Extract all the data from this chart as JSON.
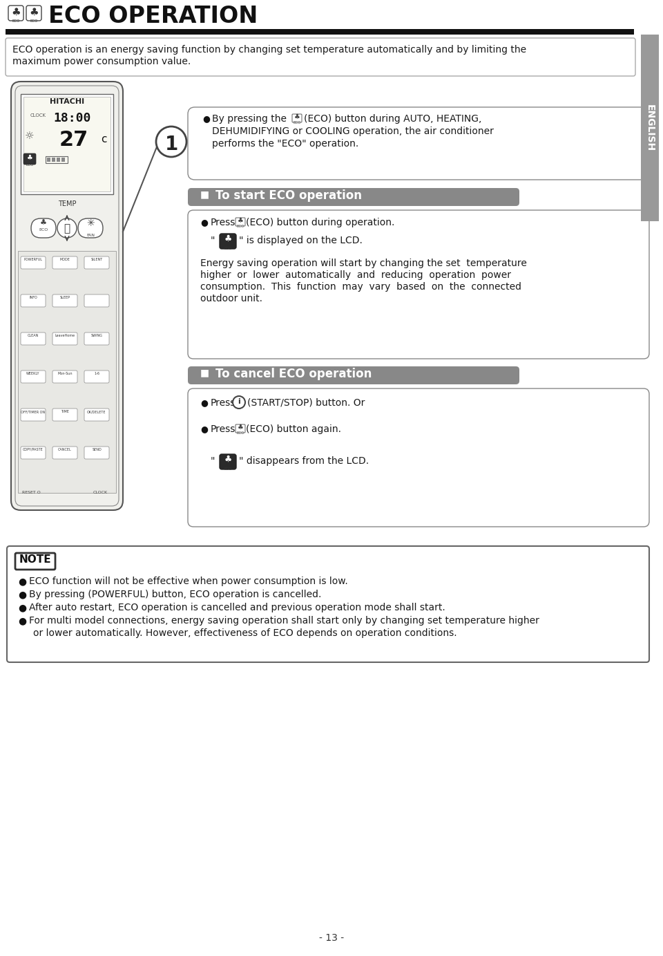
{
  "title": "ECO OPERATION",
  "bg_color": "#ffffff",
  "page_number": "- 13 -",
  "intro_text1": "ECO operation is an energy saving function by changing set temperature automatically and by limiting the",
  "intro_text2": "maximum power consumption value.",
  "english_label": "ENGLISH",
  "step1_line1": "By pressing the  ♣  (ECO) button during AUTO, HEATING,",
  "step1_line2": "DEHUMIDIFYING or COOLING operation, the air conditioner",
  "step1_line3": "performs the \"ECO\" operation.",
  "start_section_title": "To start ECO operation",
  "start_b1a": "Press  ♣  (ECO) button during operation.",
  "start_b2": "\" ♣ \" is displayed on the LCD.",
  "start_body1": "Energy saving operation will start by changing the set  temperature",
  "start_body2": "higher  or  lower  automatically  and  reducing  operation  power",
  "start_body3": "consumption.  This  function  may  vary  based  on  the  connected",
  "start_body4": "outdoor unit.",
  "cancel_section_title": "To cancel ECO operation",
  "cancel_b1": "Press  ⓘ  (START/STOP) button. Or",
  "cancel_b2": "Press  ♣  (ECO) button again.",
  "cancel_b3": "\" ♣ \" disappears from the LCD.",
  "note_title": "NOTE",
  "note_b1": "ECO function will not be effective when power consumption is low.",
  "note_b2": "By pressing (POWERFUL) button, ECO operation is cancelled.",
  "note_b3": "After auto restart, ECO operation is cancelled and previous operation mode shall start.",
  "note_b4a": "For multi model connections, energy saving operation shall start only by changing set temperature higher",
  "note_b4b": "or lower automatically. However, effectiveness of ECO depends on operation conditions.",
  "header_bar_color": "#111111",
  "section_bar_color": "#888888",
  "section_text_color": "#ffffff",
  "text_color": "#1a1a1a",
  "border_color": "#aaaaaa",
  "note_border_color": "#666666",
  "sidebar_color": "#999999"
}
